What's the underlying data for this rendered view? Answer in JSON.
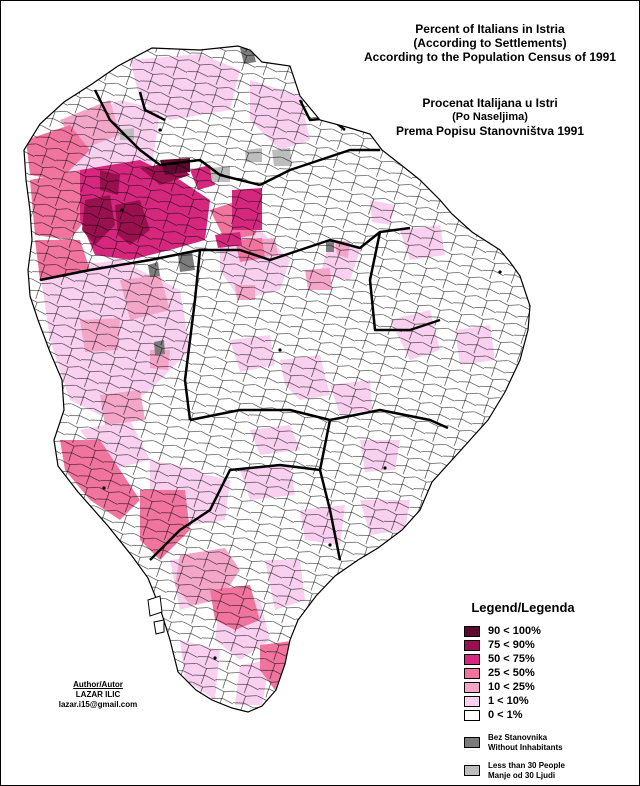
{
  "titles": {
    "en": [
      "Percent of Italians in Istria",
      "(According to Settlements)",
      "According to the Population Census of 1991"
    ],
    "hr": [
      "Procenat Italijana u Istri",
      "(Po Naseljima)",
      "Prema Popisu Stanovništva 1991"
    ]
  },
  "legend": {
    "title": "Legend/Legenda",
    "classes": [
      {
        "label": "90 < 100%",
        "color": "#5c0a2e"
      },
      {
        "label": "75 < 90%",
        "color": "#99104f"
      },
      {
        "label": "50 < 75%",
        "color": "#d6277e"
      },
      {
        "label": "25 < 50%",
        "color": "#f0749e"
      },
      {
        "label": "10 < 25%",
        "color": "#f4a6c8"
      },
      {
        "label": "1 < 10%",
        "color": "#f9d0ef"
      },
      {
        "label": "0 < 1%",
        "color": "#ffffff"
      }
    ],
    "special": [
      {
        "line1": "Bez Stanovnika",
        "line2": "Without Inhabitants",
        "color": "#7c7c7c"
      },
      {
        "line1": "Less than 30 People",
        "line2": "Manje od 30 Ljudi",
        "color": "#bdbdbd"
      }
    ]
  },
  "author": {
    "heading": "Author/Autor",
    "name": "LAZAR ILIC",
    "email": "lazar.i15@gmail.com"
  }
}
